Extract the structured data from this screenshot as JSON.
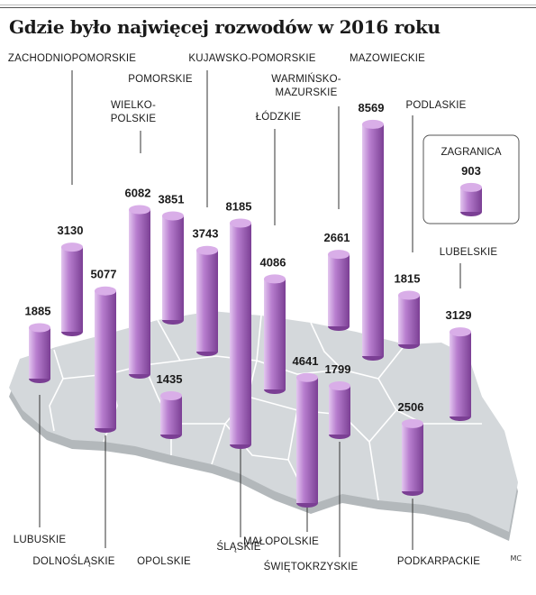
{
  "title": "Gdzie było najwięcej rozwodów w 2016 roku",
  "credit": "MC",
  "colors": {
    "bar_body": "#b87fcf",
    "bar_light": "#e3c6ef",
    "bar_dark": "#7b3f94",
    "bar_top": "#d9aee8",
    "map_fill": "#d4d8db",
    "map_shadow": "#b3b8bb",
    "map_border": "#ffffff",
    "text": "#1a1a1a"
  },
  "chart_data": {
    "type": "bar",
    "title": "Gdzie było najwięcej rozwodów w 2016 roku",
    "unit": "",
    "series": [
      {
        "categories": [
          "ZACHODNIOPOMORSKIE",
          "POMORSKIE",
          "WARMIŃSKO-MAZURSKIE",
          "PODLASKIE",
          "LUBUSKIE",
          "WIELKOPOLSKIE",
          "KUJAWSKO-POMORSKIE",
          "MAZOWIECKIE",
          "DOLNOŚLĄSKIE",
          "ŁÓDZKIE",
          "LUBELSKIE",
          "OPOLSKIE",
          "ŚLĄSKIE",
          "ŚWIĘTOKRZYSKIE",
          "MAŁOPOLSKIE",
          "PODKARPACKIE",
          "ZAGRANICA"
        ],
        "values": [
          3130,
          3851,
          2661,
          1815,
          1885,
          6082,
          3743,
          8569,
          5077,
          4086,
          3129,
          1435,
          8185,
          1799,
          4641,
          2506,
          903
        ]
      }
    ],
    "bars": [
      {
        "region": "ZACHODNIOPOMORSKIE",
        "label_lines": [
          "ZACHODNIOPOMORSKIE"
        ],
        "value": 3130
      },
      {
        "region": "POMORSKIE",
        "label_lines": [
          "POMORSKIE"
        ],
        "value": 3851
      },
      {
        "region": "WARMIŃSKO-MAZURSKIE",
        "label_lines": [
          "WARMIŃSKO-",
          "MAZURSKIE"
        ],
        "value": 2661
      },
      {
        "region": "PODLASKIE",
        "label_lines": [
          "PODLASKIE"
        ],
        "value": 1815
      },
      {
        "region": "LUBUSKIE",
        "label_lines": [
          "LUBUSKIE"
        ],
        "value": 1885
      },
      {
        "region": "WIELKOPOLSKIE",
        "label_lines": [
          "WIELKO-",
          "POLSKIE"
        ],
        "value": 6082
      },
      {
        "region": "KUJAWSKO-POMORSKIE",
        "label_lines": [
          "KUJAWSKO-POMORSKIE"
        ],
        "value": 3743
      },
      {
        "region": "MAZOWIECKIE",
        "label_lines": [
          "MAZOWIECKIE"
        ],
        "value": 8569
      },
      {
        "region": "DOLNOŚLĄSKIE",
        "label_lines": [
          "DOLNOŚLĄSKIE"
        ],
        "value": 5077
      },
      {
        "region": "ŁÓDZKIE",
        "label_lines": [
          "ŁÓDZKIE"
        ],
        "value": 4086
      },
      {
        "region": "LUBELSKIE",
        "label_lines": [
          "LUBELSKIE"
        ],
        "value": 3129
      },
      {
        "region": "OPOLSKIE",
        "label_lines": [
          "OPOLSKIE"
        ],
        "value": 1435
      },
      {
        "region": "ŚLĄSKIE",
        "label_lines": [
          "ŚLĄSKIE"
        ],
        "value": 8185
      },
      {
        "region": "ŚWIĘTOKRZYSKIE",
        "label_lines": [
          "ŚWIĘTOKRZYSKIE"
        ],
        "value": 1799
      },
      {
        "region": "MAŁOPOLSKIE",
        "label_lines": [
          "MAŁOPOLSKIE"
        ],
        "value": 4641
      },
      {
        "region": "PODKARPACKIE",
        "label_lines": [
          "PODKARPACKIE"
        ],
        "value": 2506
      }
    ],
    "inset": {
      "label": "ZAGRANICA",
      "value": 903
    }
  }
}
